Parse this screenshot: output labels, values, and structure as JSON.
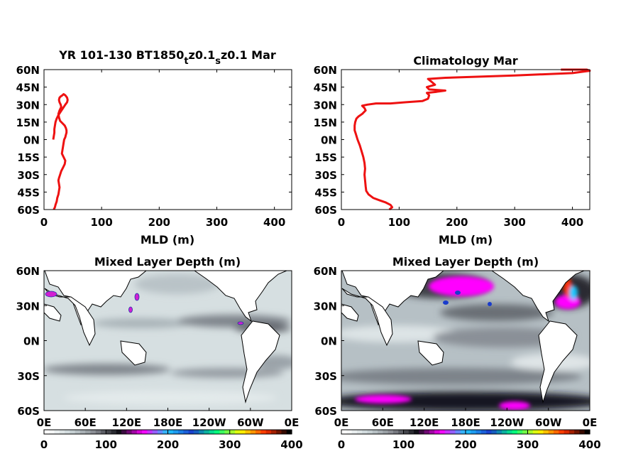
{
  "chart_data": [
    {
      "type": "line",
      "title_parts": [
        "YR 101-130 BT1850",
        "t",
        "z0.1",
        "s",
        "z0.1 Mar"
      ],
      "xlabel": "MLD (m)",
      "ylabel": "",
      "xlim": [
        0,
        430
      ],
      "ylim": [
        -60,
        60
      ],
      "xticks": [
        "0",
        "100",
        "200",
        "300",
        "400"
      ],
      "yticks": [
        "60N",
        "45N",
        "30N",
        "15N",
        "0N",
        "15S",
        "30S",
        "45S",
        "60S"
      ],
      "color": "#ee1111",
      "series": [
        {
          "x": [
            17,
            19,
            20,
            22,
            23,
            25,
            26,
            27,
            26,
            25,
            26,
            28,
            30,
            33,
            36,
            37,
            34,
            31,
            32,
            33,
            34,
            35,
            37,
            38,
            39,
            39,
            38,
            36,
            32,
            28,
            26,
            25,
            27,
            30,
            29,
            27,
            26,
            27,
            29,
            32,
            34,
            37,
            40,
            41,
            40,
            37,
            33,
            29,
            25,
            22,
            20,
            19,
            18,
            18,
            17,
            16
          ],
          "y": [
            -60,
            -58,
            -56,
            -53,
            -50,
            -47,
            -44,
            -41,
            -38,
            -35,
            -33,
            -30,
            -27,
            -24,
            -21,
            -18,
            -15,
            -12,
            -9,
            -6,
            -3,
            0,
            2,
            4,
            6,
            8,
            10,
            12,
            14,
            16,
            19,
            22,
            25,
            28,
            30,
            32,
            34,
            36,
            37,
            38,
            39,
            38,
            36,
            34,
            32,
            30,
            27,
            24,
            21,
            18,
            15,
            12,
            9,
            6,
            3,
            0
          ]
        }
      ]
    },
    {
      "type": "line",
      "title": "Climatology Mar",
      "xlabel": "MLD (m)",
      "ylabel": "",
      "xlim": [
        0,
        430
      ],
      "ylim": [
        -60,
        60
      ],
      "xticks": [
        "0",
        "100",
        "200",
        "300",
        "400"
      ],
      "yticks": [
        "60N",
        "45N",
        "30N",
        "15N",
        "0N",
        "15S",
        "30S",
        "45S",
        "60S"
      ],
      "color": "#ee1111",
      "series": [
        {
          "x": [
            83,
            88,
            85,
            77,
            66,
            55,
            47,
            43,
            42,
            41,
            40,
            41,
            40,
            38,
            35,
            32,
            28,
            25,
            23,
            23,
            24,
            26,
            30,
            36,
            40,
            42,
            41,
            40,
            38,
            36,
            45,
            60,
            85,
            110,
            140,
            150,
            152,
            148,
            165,
            180,
            152,
            148,
            162,
            155,
            150,
            180,
            300,
            400,
            430,
            425,
            380
          ],
          "y": [
            -60,
            -58,
            -56,
            -54,
            -52,
            -50,
            -47,
            -44,
            -40,
            -35,
            -30,
            -25,
            -20,
            -15,
            -10,
            -5,
            0,
            5,
            8,
            12,
            15,
            18,
            20,
            22,
            24,
            25,
            26,
            27,
            28,
            29,
            30,
            31,
            31,
            32,
            33,
            35,
            38,
            40,
            41,
            42,
            43,
            45,
            47,
            50,
            52,
            53,
            55,
            57,
            59,
            60,
            60
          ]
        }
      ]
    },
    {
      "type": "heatmap",
      "title": "Mixed Layer Depth (m)",
      "xticks": [
        "0E",
        "60E",
        "120E",
        "180E",
        "120W",
        "60W",
        "0E"
      ],
      "yticks": [
        "60N",
        "30N",
        "0N",
        "30S",
        "60S"
      ],
      "xlim": [
        0,
        360
      ],
      "ylim": [
        -60,
        60
      ],
      "colorbar_ticks": [
        "0",
        "100",
        "200",
        "300",
        "400"
      ],
      "clim": [
        0,
        400
      ],
      "colormap_stops": [
        "#ffffff",
        "#c9d4d7",
        "#85888f",
        "#0d0d14",
        "#ff00ff",
        "#1ec8ff",
        "#1a3ccc",
        "#00ff80",
        "#ffff00",
        "#ff3000",
        "#000000"
      ]
    },
    {
      "type": "heatmap",
      "title": "Mixed Layer Depth (m)",
      "xticks": [
        "0E",
        "60E",
        "120E",
        "180E",
        "120W",
        "60W",
        "0E"
      ],
      "yticks": [
        "60N",
        "30N",
        "0N",
        "30S",
        "60S"
      ],
      "xlim": [
        0,
        360
      ],
      "ylim": [
        -60,
        60
      ],
      "colorbar_ticks": [
        "0",
        "100",
        "200",
        "300",
        "400"
      ],
      "clim": [
        0,
        400
      ],
      "colormap_stops": [
        "#ffffff",
        "#c9d4d7",
        "#85888f",
        "#0d0d14",
        "#ff00ff",
        "#1ec8ff",
        "#1a3ccc",
        "#00ff80",
        "#ffff00",
        "#ff3000",
        "#000000"
      ]
    }
  ]
}
